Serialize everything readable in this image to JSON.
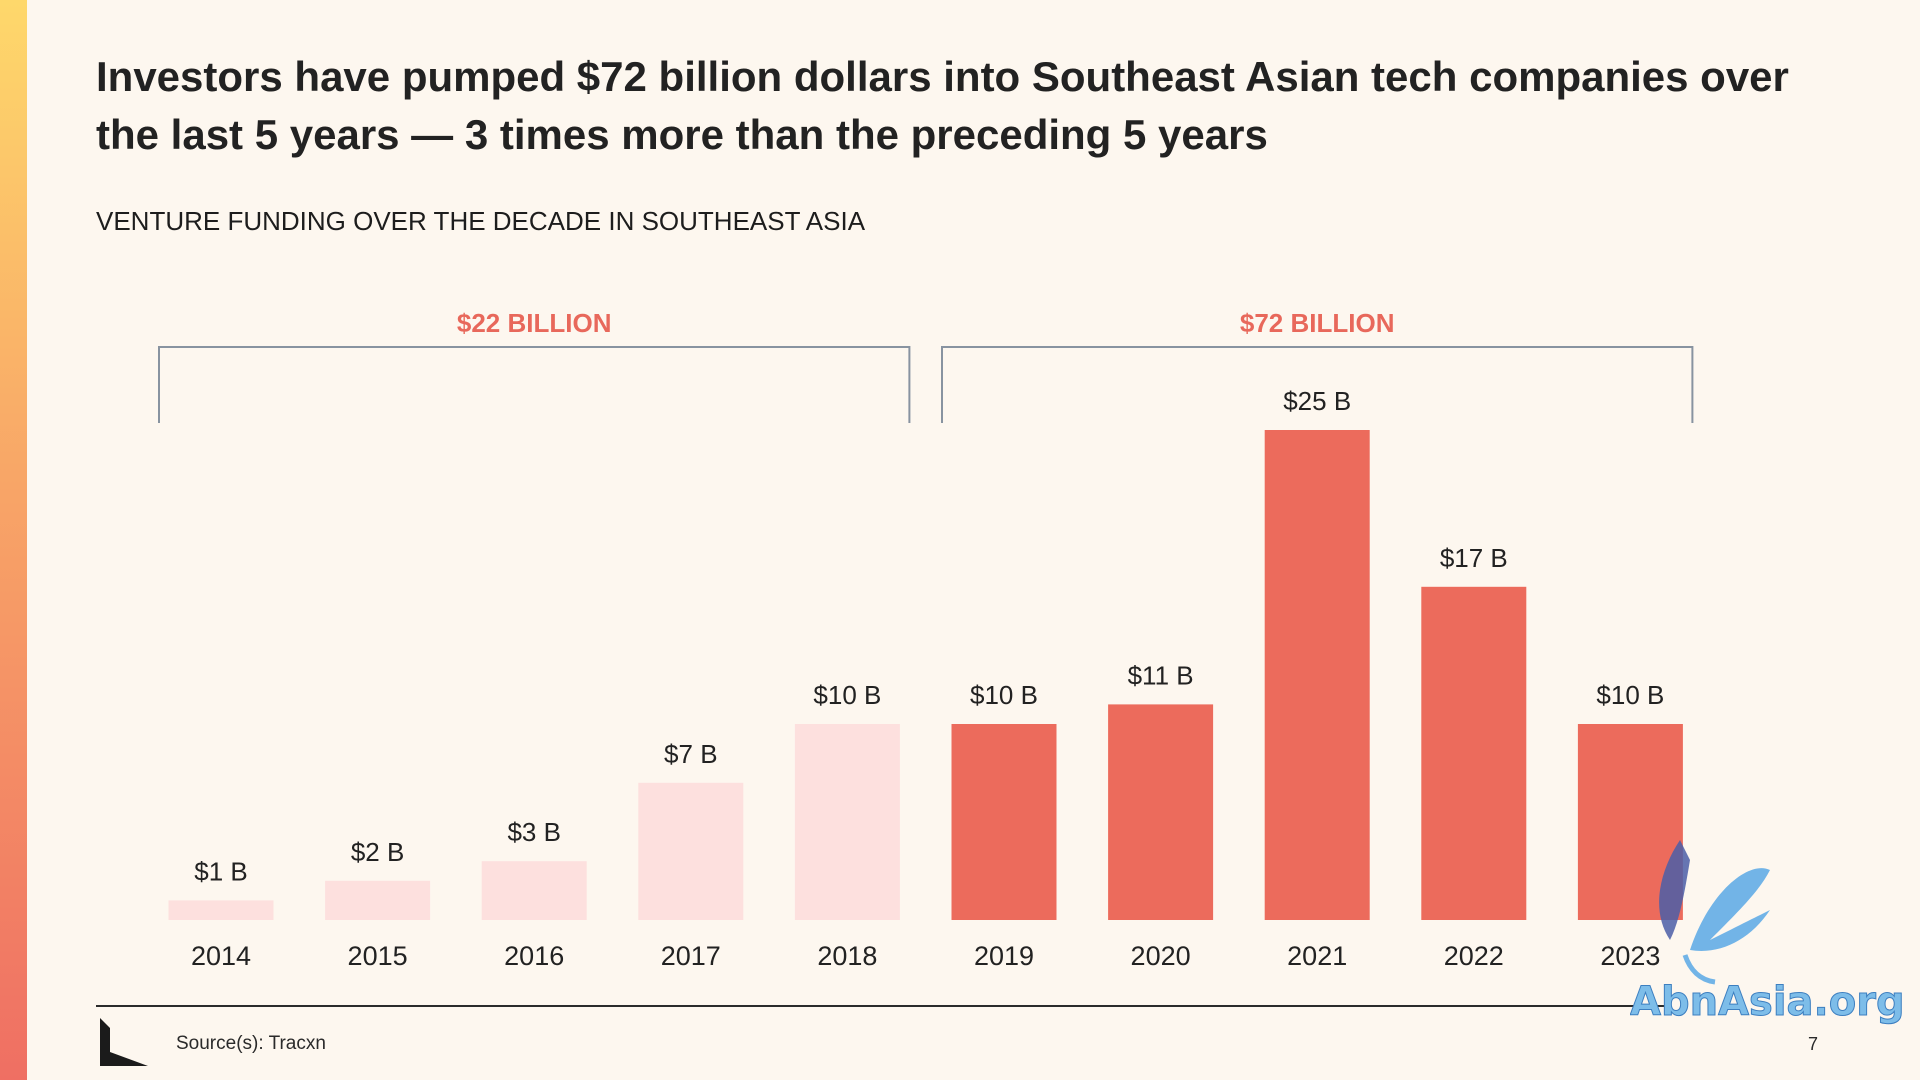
{
  "slide": {
    "headline": "Investors have pumped $72 billion dollars into Southeast Asian tech companies over the last 5 years — 3 times more than the preceding 5 years",
    "subtitle": "VENTURE FUNDING OVER THE DECADE IN SOUTHEAST ASIA",
    "source": "Source(s): Tracxn",
    "page_number": "7",
    "watermark_text": "AbnAsia.org"
  },
  "colors": {
    "background": "#fdf7ef",
    "light_bar": "#fde0de",
    "dark_bar": "#ec6b5c",
    "group_label": "#e8685b",
    "bracket": "#8893a0",
    "text": "#222222"
  },
  "chart_data": {
    "type": "bar",
    "title": "VENTURE FUNDING OVER THE DECADE IN SOUTHEAST ASIA",
    "categories": [
      "2014",
      "2015",
      "2016",
      "2017",
      "2018",
      "2019",
      "2020",
      "2021",
      "2022",
      "2023"
    ],
    "values": [
      1,
      2,
      3,
      7,
      10,
      10,
      11,
      25,
      17,
      10
    ],
    "value_labels": [
      "$1 B",
      "$2 B",
      "$3 B",
      "$7 B",
      "$10 B",
      "$10 B",
      "$11 B",
      "$25 B",
      "$17 B",
      "$10 B"
    ],
    "unit": "$ billions",
    "groups": [
      {
        "label": "$22 BILLION",
        "categories": [
          "2014",
          "2015",
          "2016",
          "2017",
          "2018"
        ],
        "color": "#fde0de"
      },
      {
        "label": "$72 BILLION",
        "categories": [
          "2019",
          "2020",
          "2021",
          "2022",
          "2023"
        ],
        "color": "#ec6b5c"
      }
    ],
    "ylim": [
      0,
      25
    ],
    "grid": false,
    "legend": "none"
  }
}
